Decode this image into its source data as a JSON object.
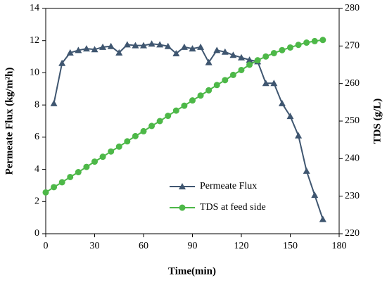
{
  "chart_data": {
    "type": "line",
    "xlabel": "Time(min)",
    "ylabel": "Permeate Flux (kg/m²h)",
    "y2label": "TDS (g/L)",
    "xlim": [
      0,
      180
    ],
    "xticks": [
      0,
      30,
      60,
      90,
      120,
      150,
      180
    ],
    "ylim": [
      0,
      14
    ],
    "yticks": [
      0,
      2,
      4,
      6,
      8,
      10,
      12,
      14
    ],
    "y2lim": [
      220,
      280
    ],
    "y2ticks": [
      220,
      230,
      240,
      250,
      260,
      270,
      280
    ],
    "series": [
      {
        "name": "Permeate Flux",
        "color": "#3f5670",
        "marker": "triangle",
        "x": [
          5,
          10,
          15,
          20,
          25,
          30,
          35,
          40,
          45,
          50,
          55,
          60,
          65,
          70,
          75,
          80,
          85,
          90,
          95,
          100,
          105,
          110,
          115,
          120,
          125,
          130,
          135,
          140,
          145,
          150,
          155,
          160,
          165,
          170
        ],
        "values": [
          8.1,
          10.6,
          11.25,
          11.4,
          11.5,
          11.45,
          11.6,
          11.65,
          11.25,
          11.75,
          11.7,
          11.7,
          11.8,
          11.75,
          11.65,
          11.2,
          11.6,
          11.5,
          11.6,
          10.65,
          11.4,
          11.3,
          11.1,
          10.95,
          10.8,
          10.7,
          9.35,
          9.35,
          8.1,
          7.3,
          6.1,
          3.9,
          2.4,
          0.9
        ]
      },
      {
        "name": "TDS at feed side",
        "color": "#4db848",
        "marker": "circle",
        "axis": "y2",
        "x": [
          0,
          5,
          10,
          15,
          20,
          25,
          30,
          35,
          40,
          45,
          50,
          55,
          60,
          65,
          70,
          75,
          80,
          85,
          90,
          95,
          100,
          105,
          110,
          115,
          120,
          125,
          130,
          135,
          140,
          145,
          150,
          155,
          160,
          165,
          170
        ],
        "values": [
          231.0,
          232.4,
          233.7,
          235.1,
          236.4,
          237.8,
          239.2,
          240.5,
          241.9,
          243.2,
          244.6,
          246.0,
          247.3,
          248.7,
          250.0,
          251.4,
          252.8,
          254.1,
          255.5,
          256.8,
          258.2,
          259.6,
          260.9,
          262.3,
          263.6,
          265.0,
          266.2,
          267.2,
          268.1,
          268.9,
          269.6,
          270.3,
          270.9,
          271.3,
          271.6
        ]
      }
    ]
  }
}
